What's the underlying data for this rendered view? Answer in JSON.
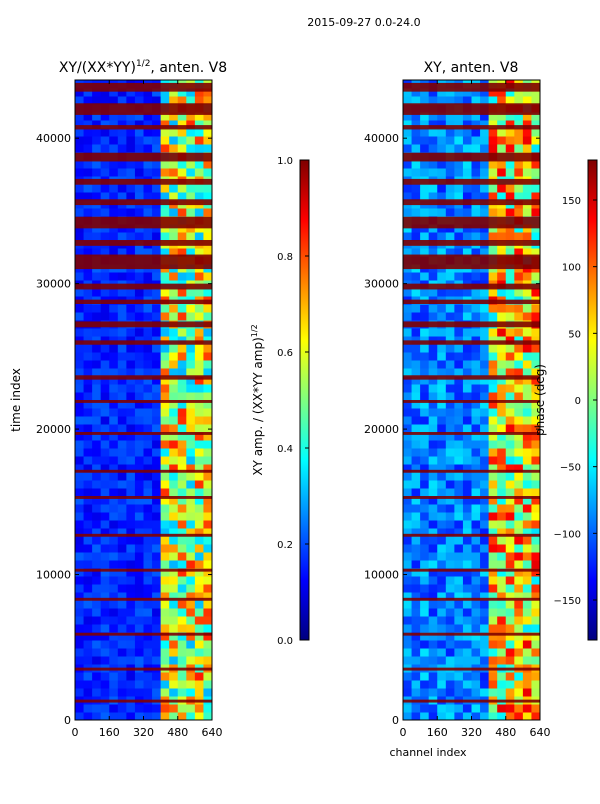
{
  "page": {
    "suptitle": "2015-09-27 0.0-24.0"
  },
  "colors": {
    "jet_stops": [
      "#00007f",
      "#0000ff",
      "#007fff",
      "#00ffff",
      "#7fff7f",
      "#ffff00",
      "#ff7f00",
      "#ff0000",
      "#7f0000"
    ],
    "flag_red": "#800000",
    "axis": "#000000"
  },
  "chart_data": [
    {
      "type": "heatmap",
      "title": "XY/(XX*YY)",
      "title_sup": "1/2",
      "title_suffix": ", anten. V8",
      "xlabel": "",
      "ylabel": "time index",
      "xlim": [
        0,
        640
      ],
      "ylim": [
        0,
        44000
      ],
      "xticks": [
        0,
        160,
        320,
        480,
        640
      ],
      "yticks": [
        0,
        10000,
        20000,
        30000,
        40000
      ],
      "colorbar": {
        "label": "XY amp. / (XX*YY amp)",
        "label_sup": "1/2",
        "ticks": [
          0.0,
          0.2,
          0.4,
          0.6,
          0.8,
          1.0
        ],
        "tick_labels": [
          "0.0",
          "0.2",
          "0.4",
          "0.6",
          "0.8",
          "1.0"
        ],
        "range": [
          0,
          1
        ]
      }
    },
    {
      "type": "heatmap",
      "title": "XY, anten. V8",
      "xlabel": "channel index",
      "ylabel": "",
      "xlim": [
        0,
        640
      ],
      "ylim": [
        0,
        44000
      ],
      "xticks": [
        0,
        160,
        320,
        480,
        640
      ],
      "yticks": [
        0,
        10000,
        20000,
        30000,
        40000
      ],
      "colorbar": {
        "label": "phase (deg)",
        "ticks": [
          -150,
          -100,
          -50,
          0,
          50,
          100,
          150
        ],
        "tick_labels": [
          "−150",
          "−100",
          "−50",
          "0",
          "50",
          "100",
          "150"
        ],
        "range": [
          -180,
          180
        ]
      }
    }
  ]
}
